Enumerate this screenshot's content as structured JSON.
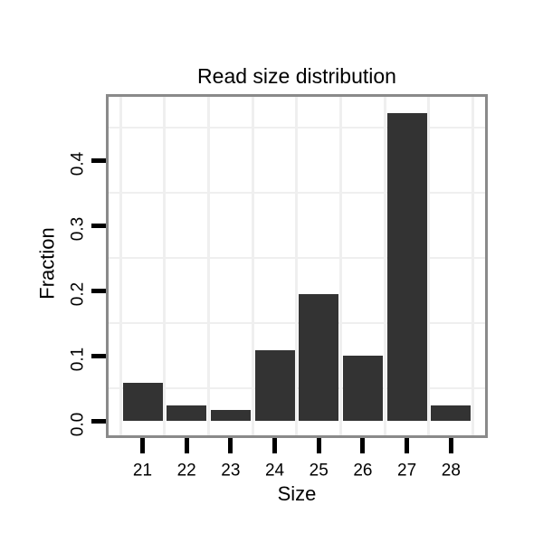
{
  "chart_data": {
    "type": "bar",
    "title": "Read size distribution",
    "xlabel": "Size",
    "ylabel": "Fraction",
    "categories": [
      "21",
      "22",
      "23",
      "24",
      "25",
      "26",
      "27",
      "28"
    ],
    "values": [
      0.058,
      0.024,
      0.016,
      0.108,
      0.194,
      0.1,
      0.472,
      0.024
    ],
    "y_tick_labels": [
      "0.0",
      "0.1",
      "0.2",
      "0.3",
      "0.4"
    ],
    "y_tick_values": [
      0.0,
      0.1,
      0.2,
      0.3,
      0.4
    ],
    "y_minor_gridlines": [
      0.05,
      0.15,
      0.25,
      0.35,
      0.45
    ],
    "ylim": [
      -0.023,
      0.497
    ],
    "grid": "minor gridlines only, light gray, vertical lines at category boundaries",
    "legend": "none",
    "colors": {
      "bar": "#333333",
      "panel_border": "#8a8a8a",
      "gridline": "#efefef",
      "tick": "#000000",
      "text": "#000000",
      "background": "#ffffff"
    }
  }
}
